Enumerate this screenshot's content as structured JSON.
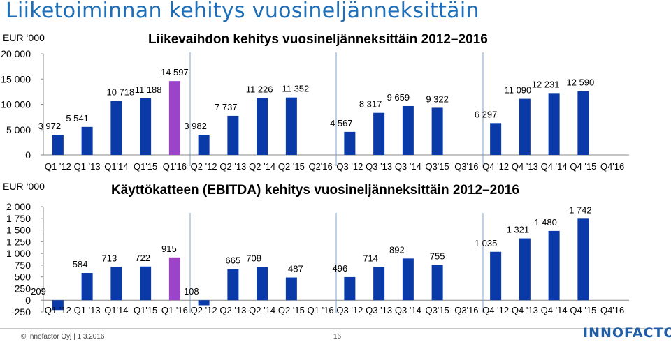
{
  "slide": {
    "title": "Liiketoiminnan kehitys vuosineljänneksittäin",
    "footer_left": "© Innofactor Oyj | 1.3.2016",
    "page_number": "16",
    "logo_text": "INNOFACTOR"
  },
  "colors": {
    "title": "#1f6fb8",
    "bar": "#0a39a8",
    "highlight_bar": "#9b44c8",
    "divider": "#7fa3cc"
  },
  "chart_data": [
    {
      "type": "bar",
      "title": "Liikevaihdon kehitys vuosineljänneksittäin 2012–2016",
      "unit_label": "EUR ‘000",
      "categories": [
        "Q1 '12",
        "Q1 '13",
        "Q1'14",
        "Q1'15",
        "Q1'16",
        "Q2 '12",
        "Q2 '13",
        "Q2 '14",
        "Q2 '15",
        "Q2'16",
        "Q3 '12",
        "Q3 '13",
        "Q3 '14",
        "Q3'15",
        "Q3'16",
        "Q4 '12",
        "Q4 '13",
        "Q4 '14",
        "Q4 '15",
        "Q4'16"
      ],
      "values": [
        3972,
        5541,
        10718,
        11188,
        14597,
        3982,
        7737,
        11226,
        11352,
        null,
        4567,
        8317,
        9659,
        9322,
        null,
        6297,
        11090,
        12231,
        12590,
        null
      ],
      "value_labels": [
        "3 972",
        "5 541",
        "10 718",
        "11 188",
        "14 597",
        "3 982",
        "7 737",
        "11 226",
        "11 352",
        "",
        "4 567",
        "8 317",
        "9 659",
        "9 322",
        "",
        "6 297",
        "11 090",
        "12 231",
        "12 590",
        ""
      ],
      "highlight_index": 4,
      "yticks": [
        "0",
        "5 000",
        "10 000",
        "15 000",
        "20 000"
      ],
      "ytick_values": [
        0,
        5000,
        10000,
        15000,
        20000
      ],
      "ylim": [
        0,
        20000
      ],
      "grid": false
    },
    {
      "type": "bar",
      "title": "Käyttökatteen (EBITDA) kehitys vuosineljänneksittäin 2012–2016",
      "unit_label": "EUR ‘000",
      "categories": [
        "Q1 '12",
        "Q1 '13",
        "Q1'14",
        "Q1'15",
        "Q1 '16",
        "Q2 '12",
        "Q2 '13",
        "Q2 '14",
        "Q2 '15",
        "Q1 '16",
        "Q3 '12",
        "Q3 '13",
        "Q3 '14",
        "Q3'15",
        "Q3'16",
        "Q4 '12",
        "Q4 '13",
        "Q4 '14",
        "Q4 '15",
        "Q4'16"
      ],
      "values": [
        -209,
        584,
        713,
        722,
        915,
        -108,
        665,
        708,
        487,
        null,
        496,
        714,
        892,
        755,
        null,
        1035,
        1321,
        1480,
        1742,
        null
      ],
      "value_labels": [
        "-209",
        "584",
        "713",
        "722",
        "915",
        "-108",
        "665",
        "708",
        "487",
        "",
        "496",
        "714",
        "892",
        "755",
        "",
        "1 035",
        "1 321",
        "1 480",
        "1 742",
        ""
      ],
      "highlight_index": 4,
      "yticks": [
        "-250",
        "0",
        "250",
        "500",
        "750",
        "1 000",
        "1 250",
        "1 500",
        "1 750",
        "2 000"
      ],
      "ytick_values": [
        -250,
        0,
        250,
        500,
        750,
        1000,
        1250,
        1500,
        1750,
        2000
      ],
      "ylim": [
        -250,
        2000
      ],
      "grid": false
    }
  ]
}
